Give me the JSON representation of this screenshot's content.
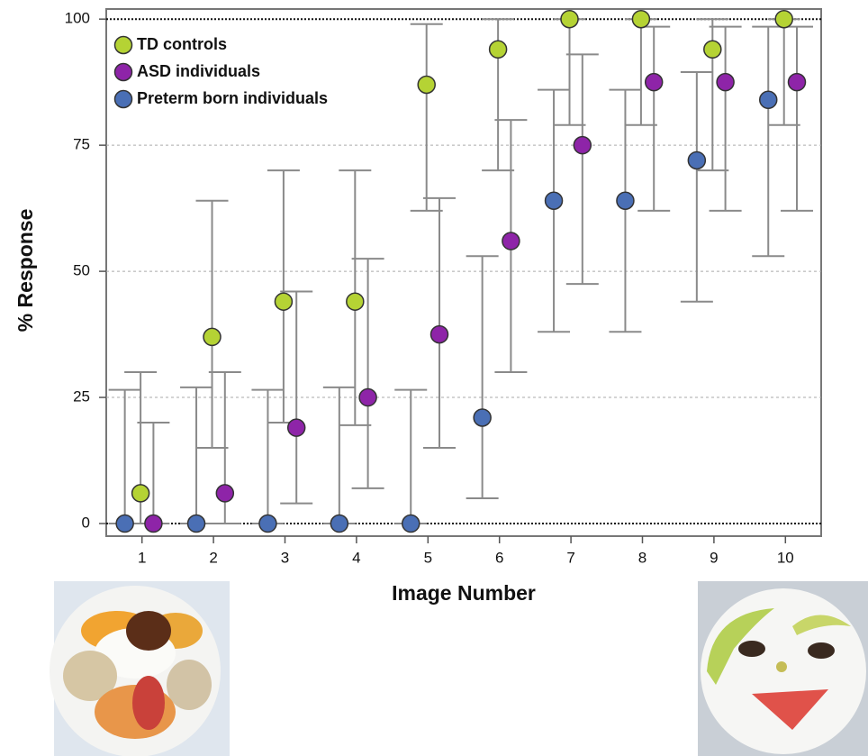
{
  "chart_data": {
    "type": "scatter",
    "xlabel": "Image Number",
    "ylabel": "% Response",
    "x": [
      1,
      2,
      3,
      4,
      5,
      6,
      7,
      8,
      9,
      10
    ],
    "xlim": [
      0.5,
      10.5
    ],
    "xticks": [
      1,
      2,
      3,
      4,
      5,
      6,
      7,
      8,
      9,
      10
    ],
    "ylim": [
      -2.5,
      102
    ],
    "yticks": [
      0,
      25,
      50,
      75,
      100
    ],
    "grid": true,
    "legend": "upper left",
    "series": [
      {
        "name": "TD controls",
        "color": "#b5d334",
        "values": [
          6,
          37,
          44,
          44,
          87,
          94,
          100,
          100,
          94,
          100
        ],
        "lower": [
          0,
          15,
          20,
          19.5,
          62,
          70,
          79,
          79,
          70,
          79
        ],
        "upper": [
          30,
          64,
          70,
          70,
          99,
          100,
          100,
          100,
          100,
          100
        ]
      },
      {
        "name": "ASD individuals",
        "color": "#8e24a8",
        "values": [
          0,
          6,
          19,
          25,
          37.5,
          56,
          75,
          87.5,
          87.5,
          87.5
        ],
        "lower": [
          0,
          0,
          4,
          7,
          15,
          30,
          47.5,
          62,
          62,
          62
        ],
        "upper": [
          20,
          30,
          46,
          52.5,
          64.5,
          80,
          93,
          98.5,
          98.5,
          98.5
        ]
      },
      {
        "name": "Preterm born individuals",
        "color": "#4a6fb5",
        "values": [
          0,
          0,
          0,
          0,
          0,
          21,
          64,
          64,
          72,
          84
        ],
        "lower": [
          0,
          0,
          0,
          0,
          0,
          5,
          38,
          38,
          44,
          53
        ],
        "upper": [
          26.5,
          27,
          26.5,
          27,
          26.5,
          53,
          86,
          86,
          89.5,
          98.5
        ]
      }
    ]
  }
}
